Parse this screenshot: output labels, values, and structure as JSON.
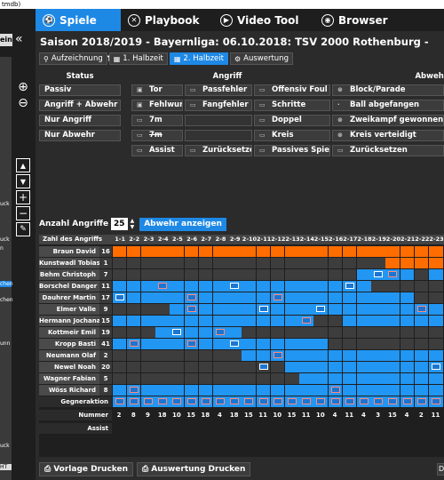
{
  "window": {
    "title": "tmdb)"
  },
  "sidebar": {
    "ein_label": "ein",
    "collapse_icon": "«",
    "labels": [
      "uck",
      "uck",
      "n",
      "chen",
      "chen",
      "unn",
      "uck",
      "HT"
    ]
  },
  "nav": {
    "tabs": [
      {
        "label": "Spiele",
        "icon": "soccer-ball-icon"
      },
      {
        "label": "Playbook",
        "icon": "playbook-icon"
      },
      {
        "label": "Video Tool",
        "icon": "play-icon"
      },
      {
        "label": "Browser",
        "icon": "globe-icon"
      }
    ]
  },
  "header": {
    "title": "Saison 2018/2019 - Bayernliga:  06.10.2018: TSV 2000 Rothenburg - HT München"
  },
  "subtabs": [
    {
      "label": "Aufzeichnung",
      "icon": "⚲"
    },
    {
      "label": "1. Halbzeit",
      "icon": "▦"
    },
    {
      "label": "2. Halbzeit",
      "icon": "▦"
    },
    {
      "label": "Auswertung",
      "icon": "⚙"
    }
  ],
  "status_panel": {
    "headers": {
      "status": "Status",
      "angriff": "Angriff",
      "abwehr": "Abwehr"
    },
    "status_items": [
      "Passiv",
      "Angriff + Abwehr",
      "Nur Angriff",
      "Nur Abwehr"
    ],
    "angriff_col1": [
      "Tor",
      "Fehlwurf",
      "7m",
      "7m",
      "Assist"
    ],
    "angriff_col2": [
      "Passfehler",
      "Fangfehler",
      "",
      "",
      "Zurücksetzen"
    ],
    "angriff_col3": [
      "Offensiv Foul",
      "Schritte",
      "Doppel",
      "Kreis",
      "Passives Spiel"
    ],
    "abwehr_col1": [
      "Block/Parade",
      "Ball abgefangen",
      "Zweikampf gewonnen",
      "Kreis verteidigt",
      "Zurücksetzen"
    ]
  },
  "anzahl": {
    "label": "Anzahl Angriffe",
    "value": "25",
    "button": "Abwehr anzeigen"
  },
  "grid": {
    "name_header": "Zahl des Angriffs",
    "columns": [
      "1-1",
      "2-2",
      "2-3",
      "2-4",
      "2-5",
      "2-6",
      "2-7",
      "2-8",
      "2-9",
      "2-10",
      "2-11",
      "2-12",
      "2-13",
      "2-14",
      "2-15",
      "2-16",
      "2-17",
      "2-18",
      "2-19",
      "2-20",
      "2-21",
      "2-22",
      "2-23"
    ],
    "players": [
      {
        "name": "Braun David",
        "count": "16"
      },
      {
        "name": "Kunstwadl Tobias",
        "count": "1"
      },
      {
        "name": "Behm Christoph",
        "count": "7"
      },
      {
        "name": "Borschel Danger",
        "count": "11"
      },
      {
        "name": "Dauhrer Martin",
        "count": "17"
      },
      {
        "name": "Elmer Valle",
        "count": "9"
      },
      {
        "name": "Hermann Jochanan",
        "count": "15"
      },
      {
        "name": "Kottmeir Emil",
        "count": "19"
      },
      {
        "name": "Kropp Basti",
        "count": "41"
      },
      {
        "name": "Neumann Olaf",
        "count": "2"
      },
      {
        "name": "Newel Noah",
        "count": "20"
      },
      {
        "name": "Wagner Fabian",
        "count": "5"
      },
      {
        "name": "Wöss Richard",
        "count": "8"
      }
    ],
    "gegneraktion_label": "Gegneraktion",
    "nummer_label": "Nummer",
    "assist_label": "Assist",
    "nummer_values": [
      "2",
      "8",
      "9",
      "18",
      "10",
      "15",
      "18",
      "4",
      "18",
      "15",
      "11",
      "10",
      "15",
      "11",
      "10",
      "4",
      "11",
      "4",
      "3",
      "15",
      "4",
      "2",
      "11"
    ]
  },
  "bottom": {
    "vorlage": "Vorlage Drucken",
    "auswertung": "Auswertung Drucken"
  },
  "colors": {
    "accent": "#1e88e5",
    "orange": "#ff6d00",
    "cell_blue": "#2196f3"
  }
}
